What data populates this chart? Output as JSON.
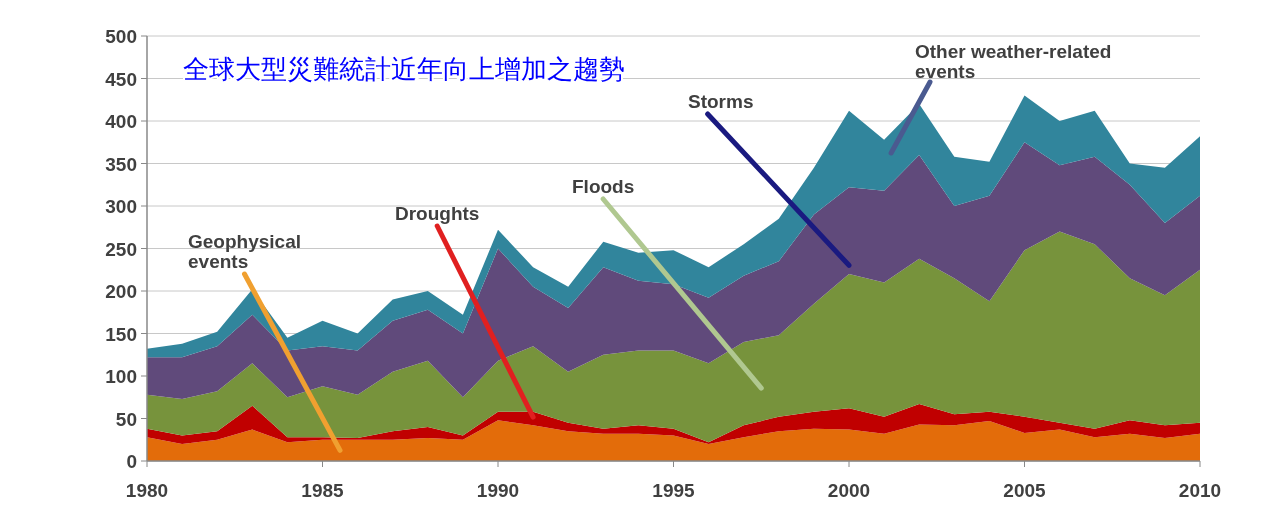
{
  "chart_data": {
    "type": "area",
    "stacked": true,
    "title": "全球大型災難統計近年向上增加之趨勢",
    "x": [
      1980,
      1981,
      1982,
      1983,
      1984,
      1985,
      1986,
      1987,
      1988,
      1989,
      1990,
      1991,
      1992,
      1993,
      1994,
      1995,
      1996,
      1997,
      1998,
      1999,
      2000,
      2001,
      2002,
      2003,
      2004,
      2005,
      2006,
      2007,
      2008,
      2009,
      2010
    ],
    "xlim": [
      1980,
      2010
    ],
    "xticks": [
      1980,
      1985,
      1990,
      1995,
      2000,
      2005,
      2010
    ],
    "ylim": [
      0,
      500
    ],
    "yticks": [
      0,
      50,
      100,
      150,
      200,
      250,
      300,
      350,
      400,
      450,
      500
    ],
    "grid": "y",
    "series": [
      {
        "name": "Geophysical events",
        "color": "#e36c0a",
        "values": [
          28,
          20,
          25,
          37,
          22,
          25,
          25,
          25,
          27,
          25,
          48,
          42,
          35,
          32,
          32,
          30,
          20,
          28,
          35,
          38,
          37,
          32,
          43,
          42,
          47,
          33,
          37,
          28,
          32,
          27,
          32
        ]
      },
      {
        "name": "Droughts",
        "color": "#c00000",
        "values": [
          10,
          10,
          10,
          28,
          6,
          3,
          2,
          10,
          13,
          5,
          10,
          16,
          10,
          6,
          10,
          8,
          2,
          14,
          17,
          20,
          25,
          20,
          24,
          13,
          11,
          19,
          8,
          10,
          16,
          15,
          13
        ]
      },
      {
        "name": "Floods",
        "color": "#77933c",
        "values": [
          40,
          43,
          47,
          50,
          47,
          60,
          51,
          70,
          78,
          45,
          60,
          77,
          60,
          87,
          88,
          92,
          93,
          98,
          96,
          127,
          158,
          158,
          171,
          160,
          130,
          196,
          225,
          217,
          167,
          153,
          180
        ]
      },
      {
        "name": "Storms",
        "color": "#604a7b",
        "values": [
          44,
          49,
          53,
          57,
          55,
          47,
          52,
          60,
          60,
          75,
          132,
          70,
          75,
          103,
          82,
          78,
          77,
          78,
          87,
          105,
          102,
          108,
          122,
          85,
          124,
          127,
          78,
          103,
          110,
          85,
          87
        ]
      },
      {
        "name": "Other weather-related events",
        "color": "#31859c",
        "values": [
          10,
          16,
          17,
          30,
          15,
          30,
          20,
          25,
          22,
          22,
          22,
          23,
          25,
          30,
          33,
          40,
          36,
          37,
          50,
          55,
          90,
          60,
          60,
          58,
          40,
          55,
          52,
          54,
          25,
          65,
          70
        ]
      }
    ]
  }
}
